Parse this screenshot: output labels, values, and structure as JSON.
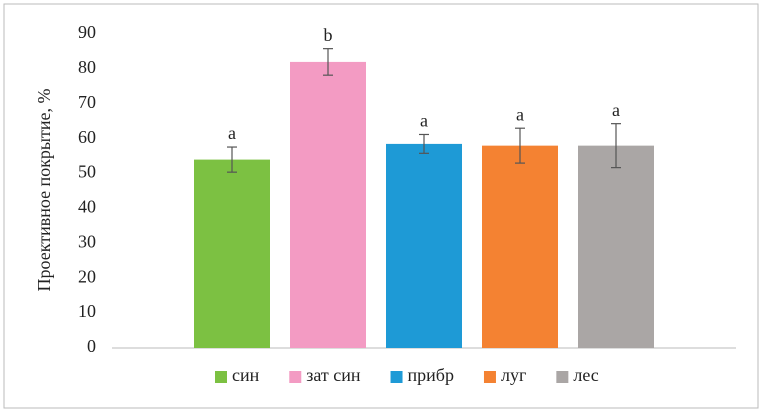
{
  "chart_data": {
    "type": "bar",
    "y_label": "Проективное покрытие,  %",
    "ylim": [
      0,
      90
    ],
    "yticks": [
      0,
      10,
      20,
      30,
      40,
      50,
      60,
      70,
      80,
      90
    ],
    "grid": false,
    "legend": "bottom",
    "series": [
      {
        "name": "син",
        "color": "#7cc142",
        "values": [
          54
        ],
        "errors": [
          3.6
        ],
        "letter": "a"
      },
      {
        "name": "зат син",
        "color": "#f39bc3",
        "values": [
          82
        ],
        "errors": [
          3.8
        ],
        "letter": "b"
      },
      {
        "name": "прибр",
        "color": "#1e9ad6",
        "values": [
          58.5
        ],
        "errors": [
          2.7
        ],
        "letter": "a"
      },
      {
        "name": "луг",
        "color": "#f48232",
        "values": [
          58
        ],
        "errors": [
          5
        ],
        "letter": "a"
      },
      {
        "name": "лес",
        "color": "#aaa6a5",
        "values": [
          58
        ],
        "errors": [
          6.3
        ],
        "letter": "a"
      }
    ]
  }
}
